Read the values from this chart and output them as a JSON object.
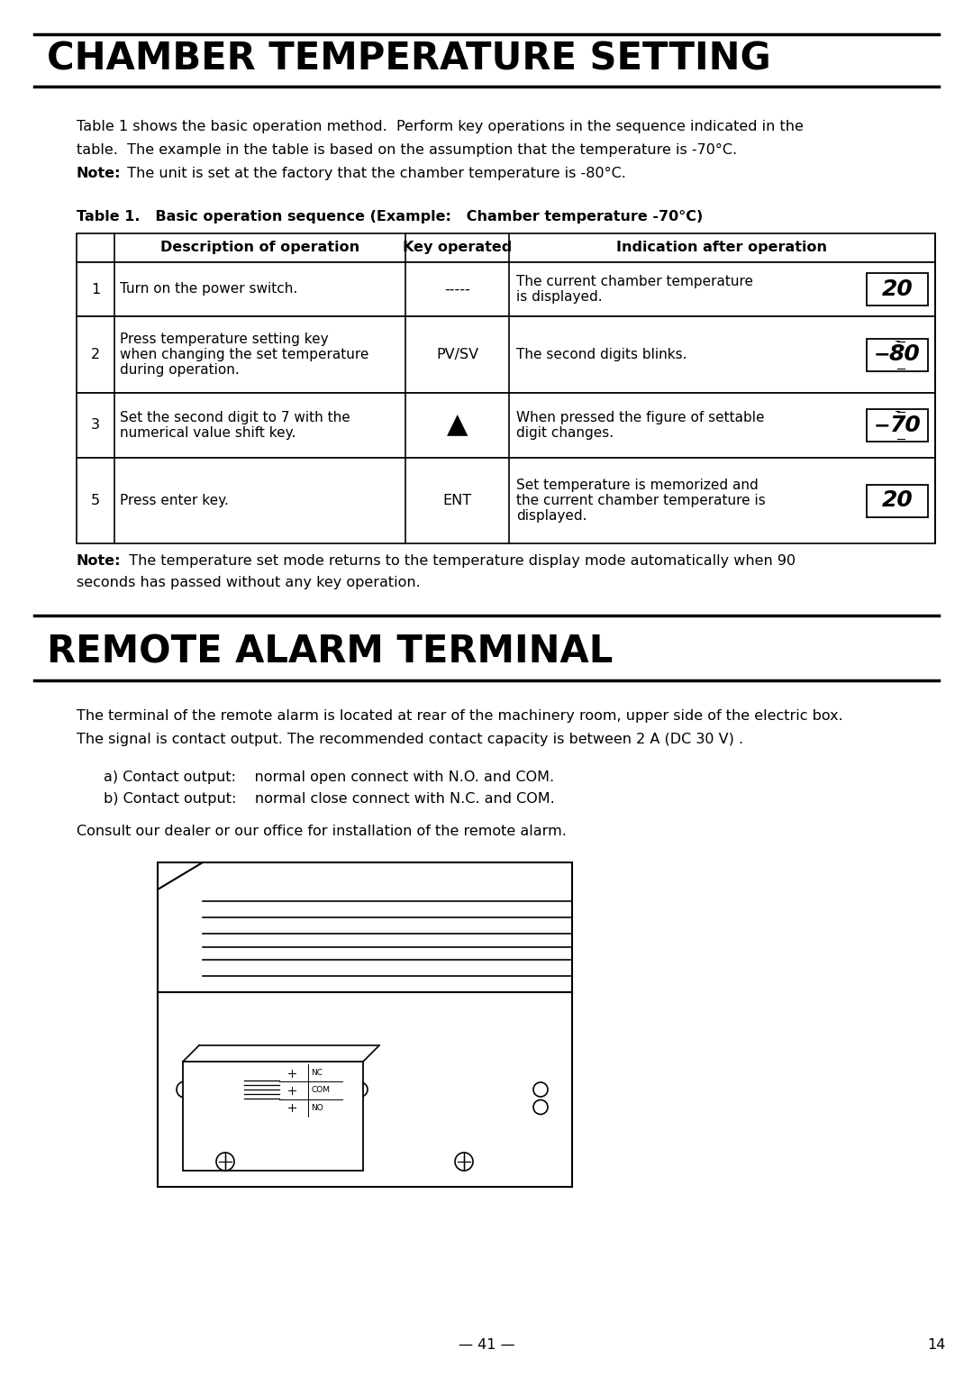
{
  "title1": "CHAMBER TEMPERATURE SETTING",
  "title2": "REMOTE ALARM TERMINAL",
  "bg_color": "#ffffff",
  "table_title": "Table 1.   Basic operation sequence (Example:   Chamber temperature -70°C)",
  "table_rows": [
    {
      "num": "1",
      "desc": [
        "Turn on the power switch."
      ],
      "key": "-----",
      "indication_text": [
        "The current chamber temperature",
        "is displayed."
      ],
      "display": "20",
      "display_minus": false
    },
    {
      "num": "2",
      "desc": [
        "Press temperature setting key",
        "when changing the set temperature",
        "during operation."
      ],
      "key": "PV/SV",
      "indication_text": [
        "The second digits blinks."
      ],
      "display": "80",
      "display_minus": true,
      "blink": true
    },
    {
      "num": "3",
      "desc": [
        "Set the second digit to 7 with the",
        "numerical value shift key."
      ],
      "key": "▲",
      "indication_text": [
        "When pressed the figure of settable",
        "digit changes."
      ],
      "display": "70",
      "display_minus": true,
      "blink": true
    },
    {
      "num": "5",
      "desc": [
        "Press enter key."
      ],
      "key": "ENT",
      "indication_text": [
        "Set temperature is memorized and",
        "the current chamber temperature is",
        "displayed."
      ],
      "display": "20",
      "display_minus": false
    }
  ],
  "bottom_note1": "The temperature set mode returns to the temperature display mode automatically when 90",
  "bottom_note2": "seconds has passed without any key operation.",
  "remote_intro1": "The terminal of the remote alarm is located at rear of the machinery room, upper side of the electric box.",
  "remote_intro2": "The signal is contact output. The recommended contact capacity is between 2 A (DC 30 V) .",
  "contact_a": "a) Contact output:    normal open connect with N.O. and COM.",
  "contact_b": "b) Contact output:    normal close connect with N.C. and COM.",
  "consult_text": "Consult our dealer or our office for installation of the remote alarm.",
  "page_num": "— 41 —",
  "page_ref": "14"
}
